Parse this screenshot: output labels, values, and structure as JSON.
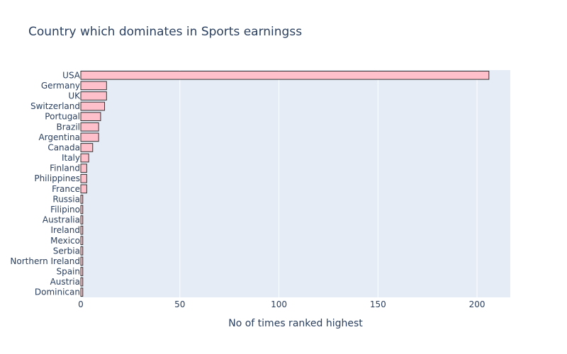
{
  "chart_data": {
    "type": "bar",
    "orientation": "horizontal",
    "title": "Country which dominates in Sports earningss",
    "xlabel": "No of times ranked highest",
    "ylabel": "",
    "categories": [
      "USA",
      "Germany",
      "UK",
      "Switzerland",
      "Portugal",
      "Brazil",
      "Argentina",
      "Canada",
      "Italy",
      "Finland",
      "Philippines",
      "France",
      "Russia",
      "Filipino",
      "Australia",
      "Ireland",
      "Mexico",
      "Serbia",
      "Northern Ireland",
      "Spain",
      "Austria",
      "Dominican"
    ],
    "values": [
      206,
      13,
      13,
      12,
      10,
      9,
      9,
      6,
      4,
      3,
      3,
      3,
      1,
      1,
      1,
      1,
      1,
      1,
      1,
      1,
      1,
      1
    ],
    "xlim": [
      0,
      216.8
    ],
    "xticks": [
      0,
      50,
      100,
      150,
      200
    ],
    "grid": true,
    "legend": "none",
    "colors": {
      "bar_fill": "#ffc0cb",
      "bar_stroke": "#333333",
      "plot_bg": "#e5ecf6",
      "grid": "#ffffff",
      "text": "#2a3f5f"
    }
  }
}
